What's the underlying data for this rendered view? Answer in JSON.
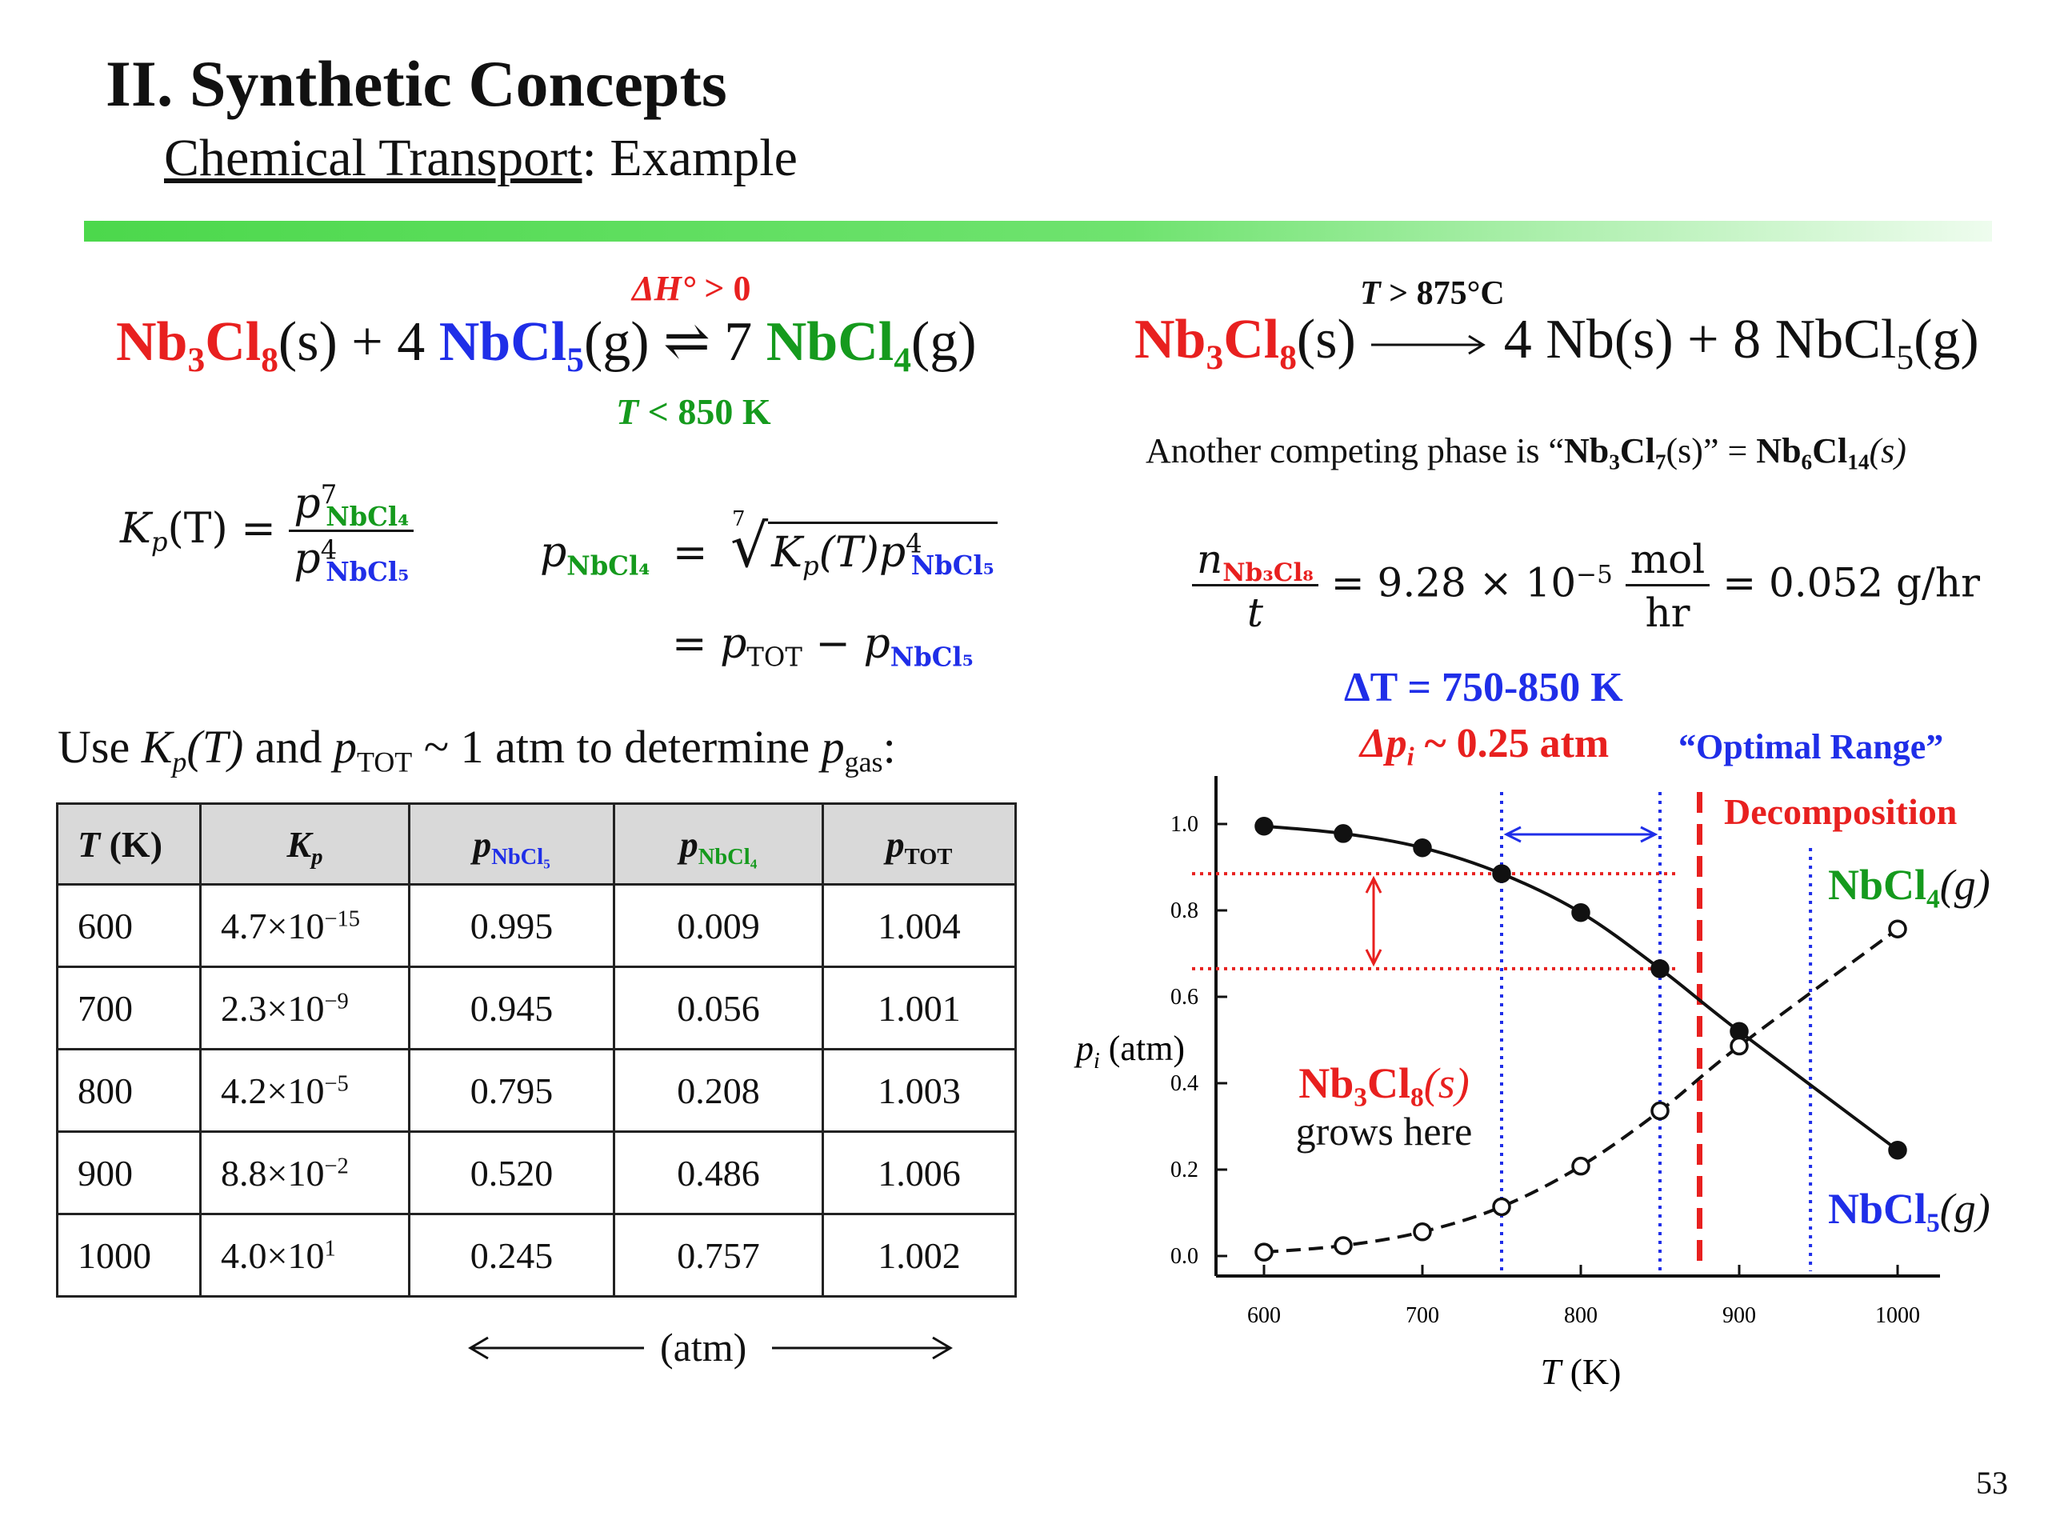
{
  "title": "II. Synthetic Concepts",
  "subtitle": {
    "underlined": "Chemical Transport",
    "rest": ": Example"
  },
  "slide_number": "53",
  "reaction1": {
    "dH_label": "ΔH°",
    "dH_cond": " > 0",
    "T_label": "T",
    "T_cond": " < 850 K",
    "reactant": "Nb",
    "reactant_sub1": "3",
    "reactant_cl": "Cl",
    "reactant_sub2": "8",
    "state_s": "(s)",
    "plus": " + 4 ",
    "reagent": "NbCl",
    "reagent_sub": "5",
    "state_g": "(g)",
    "arrow": " ⇌ 7 ",
    "product": "NbCl",
    "product_sub": "4"
  },
  "kp_eq": {
    "lhs": "K",
    "lhs_sub": "p",
    "lhs_arg": "(T) =",
    "num_p": "p",
    "num_sup": "7",
    "num_sub": "NbCl₄",
    "den_p": "p",
    "den_sup": "4",
    "den_sub": "NbCl₅"
  },
  "pnbcl4_eq": {
    "lhs_p": "p",
    "lhs_sub": "NbCl₄",
    "eq": "=",
    "root_index": "7",
    "radicand_k": "K",
    "radicand_ksub": "p",
    "radicand_arg": "(T)p",
    "radicand_sup": "4",
    "radicand_sub": "NbCl₅",
    "line2_eq": "= p",
    "line2_sub1": "TOT",
    "line2_minus": " − p",
    "line2_sub2": "NbCl₅"
  },
  "use_text": {
    "a": "Use ",
    "k": "K",
    "ksub": "p",
    "t": "(T)",
    "b": " and ",
    "p": "p",
    "psub": "TOT",
    "c": " ~ 1 atm to determine ",
    "p2": "p",
    "p2sub": "gas",
    "d": ":"
  },
  "table": {
    "headers": [
      "T (K)",
      "Kp",
      "pNbCl5",
      "pNbCl4",
      "pTOT"
    ],
    "h_T": "T",
    "h_T_unit": " (K)",
    "h_Kp": "K",
    "h_Kp_sub": "p",
    "h_p5": "p",
    "h_p5_sub": "NbCl₅",
    "h_p4": "p",
    "h_p4_sub": "NbCl₄",
    "h_pt": "p",
    "h_pt_sub": "TOT",
    "rows": [
      {
        "T": "600",
        "Kp_m": "4.7×10",
        "Kp_e": "−15",
        "p5": "0.995",
        "p4": "0.009",
        "pt": "1.004"
      },
      {
        "T": "700",
        "Kp_m": "2.3×10",
        "Kp_e": "−9",
        "p5": "0.945",
        "p4": "0.056",
        "pt": "1.001"
      },
      {
        "T": "800",
        "Kp_m": "4.2×10",
        "Kp_e": "−5",
        "p5": "0.795",
        "p4": "0.208",
        "pt": "1.003"
      },
      {
        "T": "900",
        "Kp_m": "8.8×10",
        "Kp_e": "−2",
        "p5": "0.520",
        "p4": "0.486",
        "pt": "1.006"
      },
      {
        "T": "1000",
        "Kp_m": "4.0×10",
        "Kp_e": "1",
        "p5": "0.245",
        "p4": "0.757",
        "pt": "1.002"
      }
    ],
    "atm_label": "(atm)"
  },
  "reaction2": {
    "T_label": "T",
    "T_cond": " > 875°C",
    "reactant": "Nb",
    "sub1": "3",
    "cl": "Cl",
    "sub2": "8",
    "state_s": "(s)",
    "rest": " 4 Nb(s) + 8 NbCl",
    "rest_sub": "5",
    "rest_state": "(g)"
  },
  "competing": {
    "a": "Another competing phase is “",
    "b": "Nb",
    "b1": "3",
    "b2": "Cl",
    "b3": "7",
    "c": "(s)” = ",
    "d": "Nb",
    "d1": "6",
    "d2": "Cl",
    "d3": "14",
    "e": "(s)"
  },
  "rate": {
    "num_n": "n",
    "num_sub": "Nb₃Cl₈",
    "den": "t",
    "mid": "= 9.28 × 10",
    "exp": "−5",
    "unit_num": "mol",
    "unit_den": "hr",
    "end": "= 0.052 g/hr"
  },
  "annotations": {
    "dT": "ΔT = 750-850 K",
    "dp": "Δp",
    "dp_sub": "i",
    "dp_rest": " ~ 0.25 atm",
    "optimal": "“Optimal Range”",
    "decomposition": "Decomposition",
    "grows_a": "Nb",
    "grows_a1": "3",
    "grows_a2": "Cl",
    "grows_a3": "8",
    "grows_a4": "(s)",
    "grows_b": "grows here",
    "nbcl4": "NbCl",
    "nbcl4_sub": "4",
    "nbcl4_state": "(g)",
    "nbcl5": "NbCl",
    "nbcl5_sub": "5",
    "nbcl5_state": "(g)"
  },
  "chart_data": {
    "type": "line",
    "xlabel": "T (K)",
    "ylabel": "p_i (atm)",
    "xlim": [
      600,
      1000
    ],
    "ylim": [
      0,
      1.0
    ],
    "x_ticks": [
      "600",
      "700",
      "800",
      "900",
      "1000"
    ],
    "y_ticks": [
      "0.0",
      "0.2",
      "0.4",
      "0.6",
      "0.8",
      "1.0"
    ],
    "series": [
      {
        "name": "NbCl5(g)",
        "style": "solid-filled",
        "x": [
          600,
          650,
          700,
          750,
          800,
          850,
          900,
          1000
        ],
        "y": [
          0.995,
          0.978,
          0.945,
          0.885,
          0.795,
          0.665,
          0.52,
          0.245
        ]
      },
      {
        "name": "NbCl4(g)",
        "style": "dashed-open",
        "x": [
          600,
          650,
          700,
          750,
          800,
          850,
          900,
          1000
        ],
        "y": [
          0.009,
          0.024,
          0.056,
          0.114,
          0.208,
          0.336,
          0.486,
          0.757
        ]
      }
    ],
    "vlines": [
      {
        "x": 750,
        "color": "#1f2ee8",
        "style": "dotted"
      },
      {
        "x": 850,
        "color": "#1f2ee8",
        "style": "dotted"
      },
      {
        "x": 875,
        "color": "#e8201f",
        "style": "dashed"
      },
      {
        "x": 945,
        "color": "#1f2ee8",
        "style": "dotted"
      }
    ],
    "hlines": [
      {
        "y": 0.885,
        "color": "#e8201f",
        "style": "dotted"
      },
      {
        "y": 0.665,
        "color": "#e8201f",
        "style": "dotted"
      }
    ],
    "colors": {
      "red": "#e8201f",
      "blue": "#1f2ee8",
      "green": "#159a1d"
    }
  }
}
